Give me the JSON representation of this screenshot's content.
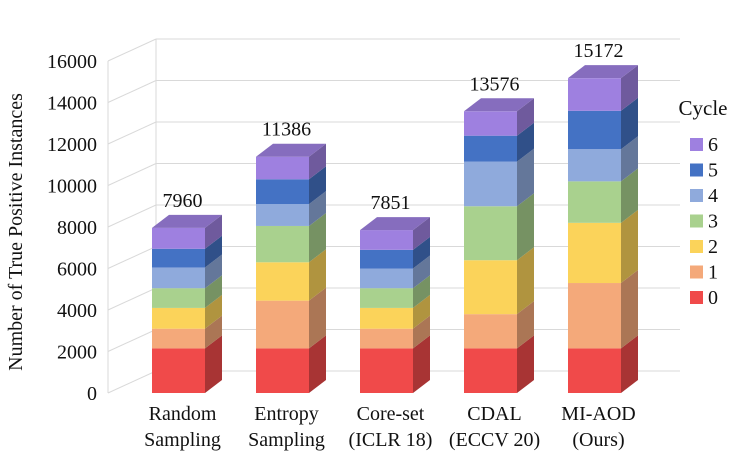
{
  "chart_data": {
    "type": "bar",
    "stacked": true,
    "three_d": true,
    "title": "",
    "ylabel": "Number of True Positive Instances",
    "xlabel": "",
    "ylim": [
      0,
      16000
    ],
    "yticks": [
      0,
      2000,
      4000,
      6000,
      8000,
      10000,
      12000,
      14000,
      16000
    ],
    "grid": true,
    "legend_title": "Cycle",
    "legend_position": "right",
    "categories": [
      [
        "Random",
        "Sampling"
      ],
      [
        "Entropy",
        "Sampling"
      ],
      [
        "Core-set",
        "(ICLR 18)"
      ],
      [
        "CDAL",
        "(ECCV 20)"
      ],
      [
        "MI-AOD",
        "(Ours)"
      ]
    ],
    "totals": [
      7960,
      11386,
      7851,
      13576,
      15172
    ],
    "series": [
      {
        "name": "0",
        "color": "#f04a4a",
        "values": [
          2150,
          2150,
          2150,
          2150,
          2150
        ]
      },
      {
        "name": "1",
        "color": "#f4a97a",
        "values": [
          950,
          2300,
          950,
          1650,
          3150
        ]
      },
      {
        "name": "2",
        "color": "#fbd35a",
        "values": [
          1000,
          1850,
          1000,
          2600,
          2900
        ]
      },
      {
        "name": "3",
        "color": "#a9d18e",
        "values": [
          950,
          1750,
          950,
          2600,
          2000
        ]
      },
      {
        "name": "4",
        "color": "#8faadc",
        "values": [
          1000,
          1050,
          950,
          2150,
          1550
        ]
      },
      {
        "name": "5",
        "color": "#4472c4",
        "values": [
          900,
          1200,
          900,
          1250,
          1850
        ]
      },
      {
        "name": "6",
        "color": "#9e80e0",
        "values": [
          1010,
          1086,
          951,
          1176,
          1572
        ]
      }
    ]
  }
}
